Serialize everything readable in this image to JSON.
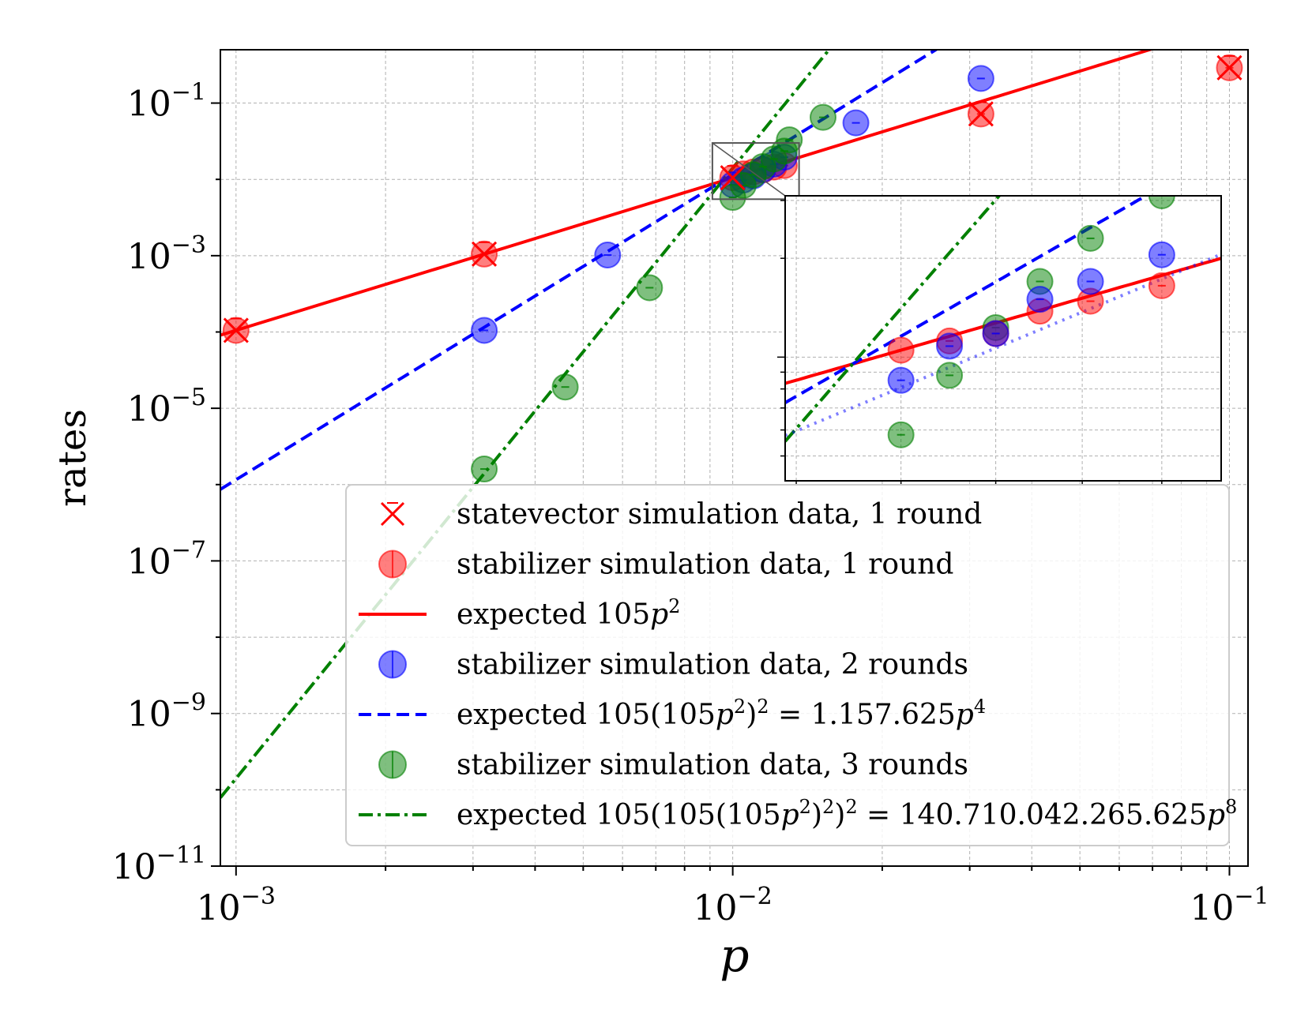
{
  "chart_data": {
    "type": "scatter",
    "xlabel": "p",
    "ylabel": "rates",
    "xscale": "log",
    "yscale": "log",
    "xlim": [
      0.00093,
      0.109
    ],
    "ylim": [
      1e-11,
      0.5
    ],
    "grid": true,
    "legend_position": "lower-right",
    "x_ticks": [
      {
        "value": 0.001,
        "base": "10",
        "exp": "−3"
      },
      {
        "value": 0.01,
        "base": "10",
        "exp": "−2"
      },
      {
        "value": 0.1,
        "base": "10",
        "exp": "−1"
      }
    ],
    "y_ticks": [
      {
        "value": 0.1,
        "base": "10",
        "exp": "−1"
      },
      {
        "value": 0.001,
        "base": "10",
        "exp": "−3"
      },
      {
        "value": 1e-05,
        "base": "10",
        "exp": "−5"
      },
      {
        "value": 1e-07,
        "base": "10",
        "exp": "−7"
      },
      {
        "value": 1e-09,
        "base": "10",
        "exp": "−9"
      },
      {
        "value": 1e-11,
        "base": "10",
        "exp": "−11"
      }
    ],
    "series": [
      {
        "name": "statevector simulation data, 1 round",
        "kind": "scatter",
        "marker": "x",
        "color": "#ff0000",
        "points": [
          [
            0.001,
            0.000105
          ],
          [
            0.00316,
            0.00105
          ],
          [
            0.01,
            0.0105
          ],
          [
            0.0316,
            0.072
          ],
          [
            0.1,
            0.29
          ]
        ]
      },
      {
        "name": "stabilizer simulation data, 1 round",
        "kind": "scatter",
        "marker": "circle",
        "color": "#ff0000",
        "points": [
          [
            0.001,
            0.000105
          ],
          [
            0.00316,
            0.00105
          ],
          [
            0.01,
            0.0105
          ],
          [
            0.0105,
            0.0118
          ],
          [
            0.011,
            0.0125
          ],
          [
            0.0115,
            0.0133
          ],
          [
            0.0121,
            0.0145
          ],
          [
            0.0127,
            0.0152
          ],
          [
            0.0316,
            0.072
          ],
          [
            0.1,
            0.29
          ]
        ]
      },
      {
        "name": "expected 105p²",
        "kind": "line",
        "style": "solid",
        "color": "#ff0000",
        "coef": 105,
        "power": 2
      },
      {
        "name": "stabilizer simulation data, 2 rounds",
        "kind": "scatter",
        "marker": "circle",
        "color": "#0000ff",
        "points": [
          [
            0.00316,
            0.000105
          ],
          [
            0.0056,
            0.00102
          ],
          [
            0.01,
            0.0085
          ],
          [
            0.0105,
            0.0098
          ],
          [
            0.011,
            0.0111
          ],
          [
            0.0115,
            0.0135
          ],
          [
            0.0121,
            0.0158
          ],
          [
            0.0127,
            0.0195
          ],
          [
            0.0177,
            0.055
          ],
          [
            0.0316,
            0.21
          ]
        ]
      },
      {
        "name": "expected 105(105p²)² = 1.157.625p⁴",
        "kind": "line",
        "style": "dashed",
        "color": "#0000ff",
        "coef": 1157625,
        "power": 4
      },
      {
        "name": "stabilizer simulation data, 3 rounds",
        "kind": "scatter",
        "marker": "circle",
        "color": "#008000",
        "points": [
          [
            0.00316,
            1.6e-06
          ],
          [
            0.0046,
            1.9e-05
          ],
          [
            0.0068,
            0.00038
          ],
          [
            0.01,
            0.0058
          ],
          [
            0.0105,
            0.0083
          ],
          [
            0.011,
            0.0115
          ],
          [
            0.0115,
            0.0147
          ],
          [
            0.0121,
            0.0185
          ],
          [
            0.0127,
            0.0235
          ],
          [
            0.013,
            0.033
          ],
          [
            0.0152,
            0.065
          ]
        ]
      },
      {
        "name": "expected 105(105(105p²)²)² = 140.710.042.265.625p⁸",
        "kind": "line",
        "style": "dashdot",
        "color": "#008000",
        "coef": 140710042265625,
        "power": 8
      }
    ],
    "legend": [
      {
        "label": "statevector simulation data, 1 round",
        "color": "#ff0000",
        "marker": "x"
      },
      {
        "label": "stabilizer simulation data, 1 round",
        "color": "#ff0000",
        "marker": "circle"
      },
      {
        "label_main": "expected 105",
        "label_var": "p",
        "label_sup": "2",
        "color": "#ff0000",
        "marker": "line-solid"
      },
      {
        "label": "stabilizer simulation data, 2 rounds",
        "color": "#0000ff",
        "marker": "circle"
      },
      {
        "label_main": "expected 105(105",
        "label_var": "p",
        "label_sup": "2",
        "label_tail": ")",
        "label_sup2": "2",
        "label_end": " = 1.157.625",
        "label_var2": "p",
        "label_sup3": "4",
        "color": "#0000ff",
        "marker": "line-dashed"
      },
      {
        "label": "stabilizer simulation data, 3 rounds",
        "color": "#008000",
        "marker": "circle"
      },
      {
        "label_main": "expected 105(105(105",
        "label_var": "p",
        "label_sup": "2",
        "label_tail": ")",
        "label_sup2": "2",
        "label_tail2": ")",
        "label_sup4": "2",
        "label_end": " = 140.710.042.265.625",
        "label_var2": "p",
        "label_sup3": "8",
        "color": "#008000",
        "marker": "line-dashdot"
      }
    ],
    "inset": {
      "xlim": [
        0.0089,
        0.0138
      ],
      "ylim": [
        0.0042,
        0.031
      ],
      "zoom_box": {
        "x": [
          0.0091,
          0.0136
        ],
        "y": [
          0.0055,
          0.03
        ]
      },
      "points_red": [
        [
          0.01,
          0.0105
        ],
        [
          0.0105,
          0.0112
        ],
        [
          0.011,
          0.0118
        ],
        [
          0.0115,
          0.0138
        ],
        [
          0.0121,
          0.0148
        ],
        [
          0.013,
          0.0165
        ]
      ],
      "points_blue": [
        [
          0.01,
          0.0085
        ],
        [
          0.0105,
          0.0108
        ],
        [
          0.011,
          0.0118
        ],
        [
          0.0115,
          0.015
        ],
        [
          0.0121,
          0.017
        ],
        [
          0.013,
          0.0205
        ]
      ],
      "points_green": [
        [
          0.01,
          0.0058
        ],
        [
          0.0105,
          0.0088
        ],
        [
          0.011,
          0.0123
        ],
        [
          0.0115,
          0.017
        ],
        [
          0.0121,
          0.023
        ],
        [
          0.013,
          0.031
        ]
      ],
      "fit_red": {
        "coef": 1.01,
        "power": 1.3
      },
      "fit_blue": {
        "coef": 5100.0,
        "power": 2.9
      },
      "fit_green": {
        "coef": 230000000000.0,
        "power": 5.9
      }
    }
  }
}
